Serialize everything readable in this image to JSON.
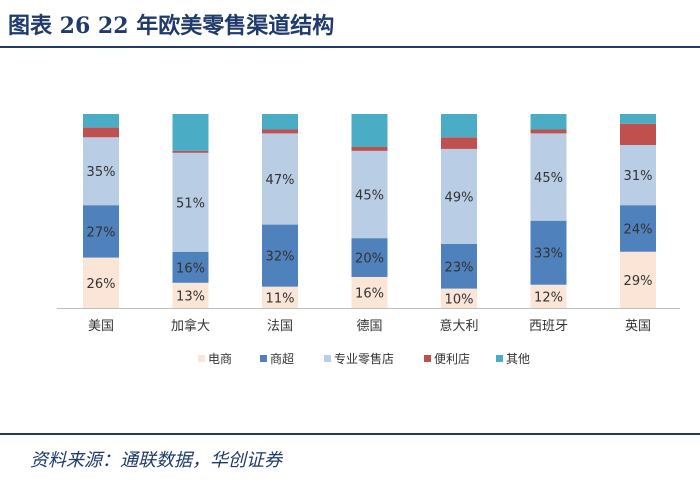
{
  "header": {
    "title": "图表 26    22 年欧美零售渠道结构"
  },
  "footer": {
    "source": "资料来源：通联数据，华创证券"
  },
  "chart_data": {
    "type": "bar",
    "stacked": true,
    "categories": [
      "美国",
      "加拿大",
      "法国",
      "德国",
      "意大利",
      "西班牙",
      "英国"
    ],
    "series": [
      {
        "name": "电商",
        "color": "#fbe5d6",
        "values": [
          26,
          13,
          11,
          16,
          10,
          12,
          29
        ]
      },
      {
        "name": "商超",
        "color": "#4f81bd",
        "values": [
          27,
          16,
          32,
          20,
          23,
          33,
          24
        ]
      },
      {
        "name": "专业零售店",
        "color": "#b9cde5",
        "values": [
          35,
          51,
          47,
          45,
          49,
          45,
          31
        ]
      },
      {
        "name": "便利店",
        "color": "#c0504d",
        "values": [
          5,
          1,
          2,
          2,
          6,
          2,
          11
        ]
      },
      {
        "name": "其他",
        "color": "#4bacc6",
        "values": [
          7,
          19,
          8,
          17,
          12,
          8,
          5
        ]
      }
    ],
    "labels": {
      "电商": [
        "26%",
        "13%",
        "11%",
        "16%",
        "10%",
        "12%",
        "29%"
      ],
      "商超": [
        "27%",
        "16%",
        "32%",
        "20%",
        "23%",
        "33%",
        "24%"
      ],
      "专业零售店": [
        "35%",
        "51%",
        "47%",
        "45%",
        "49%",
        "45%",
        "31%"
      ]
    },
    "ylim": [
      0,
      100
    ],
    "legend_position": "bottom",
    "grid": false
  }
}
